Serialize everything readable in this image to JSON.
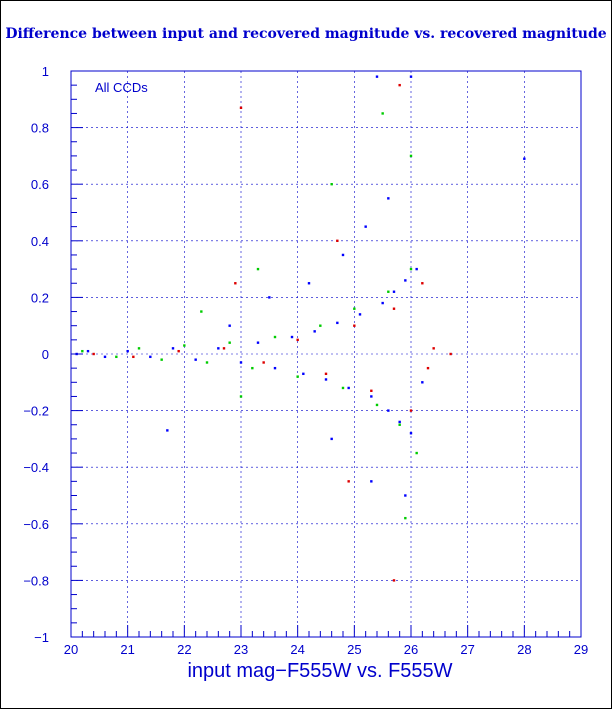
{
  "chart_data": {
    "type": "scatter",
    "title": "Difference between input and recovered magnitude vs. recovered magnitude",
    "xlabel": "input mag−F555W vs. F555W",
    "ylabel": "",
    "xlim": [
      20,
      29
    ],
    "ylim": [
      -1,
      1
    ],
    "x_ticks": [
      "20",
      "21",
      "22",
      "23",
      "24",
      "25",
      "26",
      "27",
      "28",
      "29"
    ],
    "y_ticks": [
      "−1",
      "−0.8",
      "−0.6",
      "−0.4",
      "−0.2",
      "0",
      "0.2",
      "0.4",
      "0.6",
      "0.8",
      "1"
    ],
    "annotation": "All CCDs",
    "grid": true,
    "series": [
      {
        "color": "#0000ff",
        "points": [
          [
            20.1,
            0.0
          ],
          [
            20.3,
            0.01
          ],
          [
            20.6,
            -0.01
          ],
          [
            21.0,
            0.01
          ],
          [
            21.4,
            -0.01
          ],
          [
            21.8,
            0.02
          ],
          [
            22.2,
            -0.02
          ],
          [
            22.6,
            0.02
          ],
          [
            23.0,
            -0.03
          ],
          [
            23.3,
            0.04
          ],
          [
            23.6,
            -0.05
          ],
          [
            23.9,
            0.06
          ],
          [
            24.1,
            -0.07
          ],
          [
            24.3,
            0.08
          ],
          [
            24.5,
            -0.09
          ],
          [
            24.7,
            0.11
          ],
          [
            24.9,
            -0.12
          ],
          [
            25.1,
            0.14
          ],
          [
            25.3,
            -0.15
          ],
          [
            25.5,
            0.18
          ],
          [
            25.6,
            -0.2
          ],
          [
            25.7,
            0.22
          ],
          [
            25.8,
            -0.24
          ],
          [
            25.9,
            0.26
          ],
          [
            26.0,
            -0.28
          ],
          [
            26.1,
            0.3
          ],
          [
            26.2,
            -0.1
          ],
          [
            22.8,
            0.1
          ],
          [
            23.5,
            0.2
          ],
          [
            24.2,
            0.25
          ],
          [
            24.8,
            0.35
          ],
          [
            25.2,
            0.45
          ],
          [
            25.6,
            0.55
          ],
          [
            26.0,
            0.98
          ],
          [
            25.4,
            0.98
          ],
          [
            21.7,
            -0.27
          ],
          [
            24.6,
            -0.3
          ],
          [
            25.3,
            -0.45
          ],
          [
            25.9,
            -0.5
          ],
          [
            28.0,
            0.69
          ]
        ]
      },
      {
        "color": "#00cc00",
        "points": [
          [
            20.2,
            0.01
          ],
          [
            20.8,
            -0.01
          ],
          [
            21.2,
            0.02
          ],
          [
            21.6,
            -0.02
          ],
          [
            22.0,
            0.03
          ],
          [
            22.4,
            -0.03
          ],
          [
            22.8,
            0.04
          ],
          [
            23.2,
            -0.05
          ],
          [
            23.6,
            0.06
          ],
          [
            24.0,
            -0.08
          ],
          [
            24.4,
            0.1
          ],
          [
            24.8,
            -0.12
          ],
          [
            25.0,
            0.16
          ],
          [
            25.4,
            -0.18
          ],
          [
            25.6,
            0.22
          ],
          [
            25.8,
            -0.25
          ],
          [
            26.0,
            0.3
          ],
          [
            26.1,
            -0.35
          ],
          [
            22.3,
            0.15
          ],
          [
            23.3,
            0.3
          ],
          [
            24.6,
            0.6
          ],
          [
            25.5,
            0.85
          ],
          [
            26.0,
            0.7
          ],
          [
            25.9,
            -0.58
          ],
          [
            23.0,
            -0.15
          ]
        ]
      },
      {
        "color": "#dd0000",
        "points": [
          [
            20.4,
            0.0
          ],
          [
            21.1,
            -0.01
          ],
          [
            21.9,
            0.01
          ],
          [
            22.7,
            0.02
          ],
          [
            23.4,
            -0.03
          ],
          [
            24.0,
            0.05
          ],
          [
            24.5,
            -0.07
          ],
          [
            25.0,
            0.1
          ],
          [
            25.3,
            -0.13
          ],
          [
            25.7,
            0.16
          ],
          [
            26.0,
            -0.2
          ],
          [
            26.2,
            0.25
          ],
          [
            26.3,
            -0.05
          ],
          [
            26.4,
            0.02
          ],
          [
            23.0,
            0.87
          ],
          [
            25.8,
            0.95
          ],
          [
            24.9,
            -0.45
          ],
          [
            25.7,
            -0.8
          ],
          [
            26.7,
            0.0
          ],
          [
            22.9,
            0.25
          ],
          [
            24.7,
            0.4
          ]
        ]
      }
    ]
  }
}
